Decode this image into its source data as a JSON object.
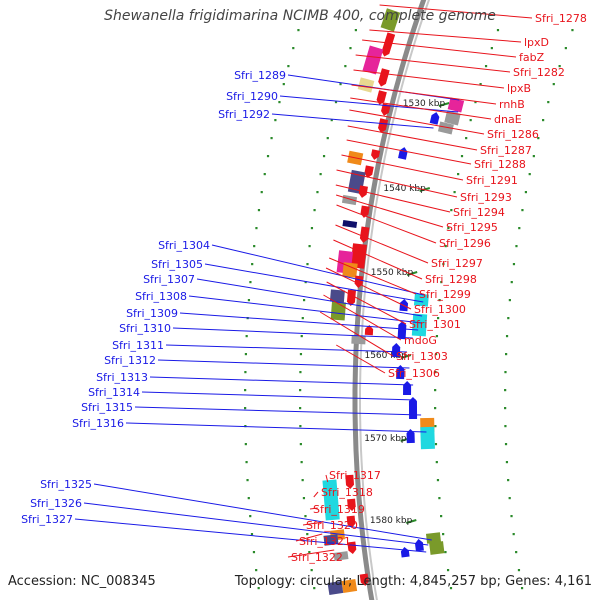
{
  "title": "Shewanella frigidimarina NCIMB 400, complete genome",
  "footer": {
    "accession": "Accession: NC_008345",
    "summary": "Topology: circular; Length: 4,845,257 bp; Genes: 4,161"
  },
  "kbp_ticks": [
    "1530 kbp",
    "1540 kbp",
    "1550 kbp",
    "1560 kbp",
    "1570 kbp",
    "1580 kbp"
  ],
  "left_labels": [
    "Sfri_1289",
    "Sfri_1290",
    "Sfri_1292",
    "Sfri_1304",
    "Sfri_1305",
    "Sfri_1307",
    "Sfri_1308",
    "Sfri_1309",
    "Sfri_1310",
    "Sfri_1311",
    "Sfri_1312",
    "Sfri_1313",
    "Sfri_1314",
    "Sfri_1315",
    "Sfri_1316",
    "Sfri_1325",
    "Sfri_1326",
    "Sfri_1327"
  ],
  "right_labels": [
    "Sfri_1278",
    "lpxD",
    "fabZ",
    "Sfri_1282",
    "lpxB",
    "rnhB",
    "dnaE",
    "Sfri_1286",
    "Sfri_1287",
    "Sfri_1288",
    "Sfri_1291",
    "Sfri_1293",
    "Sfri_1294",
    "Sfri_1295",
    "Sfri_1296",
    "Sfri_1297",
    "Sfri_1298",
    "Sfri_1299",
    "Sfri_1300",
    "Sfri_1301",
    "mdoG",
    "Sfri_1303",
    "Sfri_1306",
    "Sfri_1317",
    "Sfri_1318",
    "Sfri_1319",
    "Sfri_1320",
    "Sfri_1321",
    "Sfri_1322"
  ],
  "colors": {
    "backbone": "#8a8a8a",
    "forward_gene": "#e8141c",
    "reverse_gene": "#1a1ae6",
    "left_label": "#1a1ae6",
    "right_label": "#e8141c",
    "tick_dot": "#2a8a2a",
    "magenta": "#e6249a",
    "olive": "#7a9a2a",
    "cyan": "#20d8e0",
    "orange": "#f08a1a",
    "slate": "#4a4a8a",
    "gray": "#9a9a9a",
    "khaki": "#e8d890",
    "navy": "#10106a"
  }
}
